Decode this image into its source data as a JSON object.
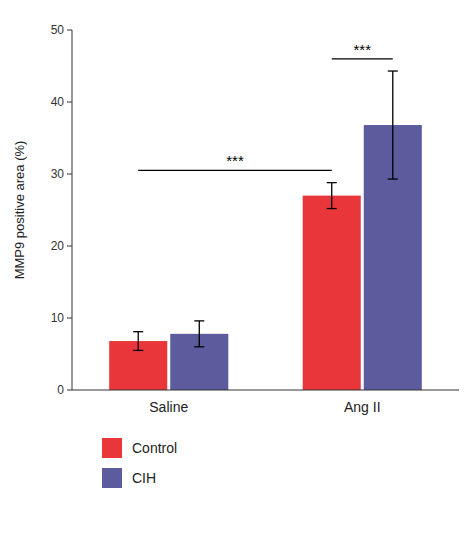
{
  "chart_data": {
    "type": "bar",
    "categories": [
      "Saline",
      "Ang II"
    ],
    "series": [
      {
        "name": "Control",
        "color": "#E8363A",
        "values": [
          6.8,
          27.0
        ],
        "errors": [
          1.3,
          1.8
        ]
      },
      {
        "name": "CIH",
        "color": "#5B5B9E",
        "values": [
          7.8,
          36.8
        ],
        "errors": [
          1.8,
          7.5
        ]
      }
    ],
    "y_label": "MMP9 positive area (%)",
    "ylim": [
      0,
      50
    ],
    "yticks": [
      0,
      10,
      20,
      30,
      40,
      50
    ],
    "grid": false,
    "legend": "bottom",
    "annotations": [
      {
        "text": "***",
        "y": 30.5,
        "from": [
          "Saline",
          "Control"
        ],
        "to": [
          "Ang II",
          "Control"
        ]
      },
      {
        "text": "***",
        "y": 46.0,
        "from": [
          "Ang II",
          "Control"
        ],
        "to": [
          "Ang II",
          "CIH"
        ]
      }
    ]
  }
}
